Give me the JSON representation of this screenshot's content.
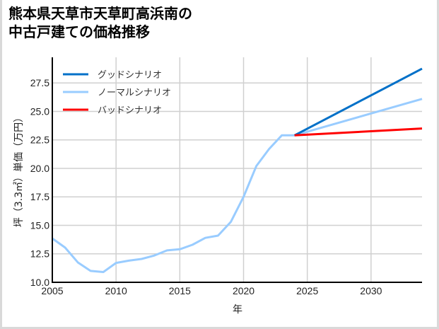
{
  "chart_data": {
    "type": "line",
    "title": "熊本県天草市天草町高浜南の中古戸建ての価格推移",
    "title_lines": [
      "熊本県天草市天草町高浜南の",
      "中古戸建ての価格推移"
    ],
    "xlabel": "年",
    "ylabel": "坪（3.3㎡）単価（万円）",
    "xlim": [
      2005,
      2034
    ],
    "ylim": [
      10.0,
      29.75
    ],
    "xticks": [
      2005,
      2010,
      2015,
      2020,
      2025,
      2030
    ],
    "yticks": [
      10.0,
      12.5,
      15.0,
      17.5,
      20.0,
      22.5,
      25.0,
      27.5
    ],
    "ytick_labels": [
      "10.0",
      "12.5",
      "15.0",
      "17.5",
      "20.0",
      "22.5",
      "25.0",
      "27.5"
    ],
    "grid": true,
    "legend_position": "upper left",
    "series": [
      {
        "name": "グッドシナリオ",
        "color": "#0070c8",
        "x": [
          2024,
          2034
        ],
        "values": [
          22.9,
          28.75
        ]
      },
      {
        "name": "ノーマルシナリオ",
        "color": "#99ccff",
        "x": [
          2005,
          2006,
          2007,
          2008,
          2009,
          2010,
          2011,
          2012,
          2013,
          2014,
          2015,
          2016,
          2017,
          2018,
          2019,
          2020,
          2021,
          2022,
          2023,
          2024,
          2034
        ],
        "values": [
          13.85,
          13.05,
          11.75,
          11.0,
          10.9,
          11.7,
          11.9,
          12.05,
          12.35,
          12.8,
          12.9,
          13.3,
          13.9,
          14.1,
          15.3,
          17.5,
          20.2,
          21.7,
          22.9,
          22.9,
          26.1
        ]
      },
      {
        "name": "バッドシナリオ",
        "color": "#ff0000",
        "x": [
          2024,
          2034
        ],
        "values": [
          22.9,
          23.5
        ]
      }
    ]
  }
}
